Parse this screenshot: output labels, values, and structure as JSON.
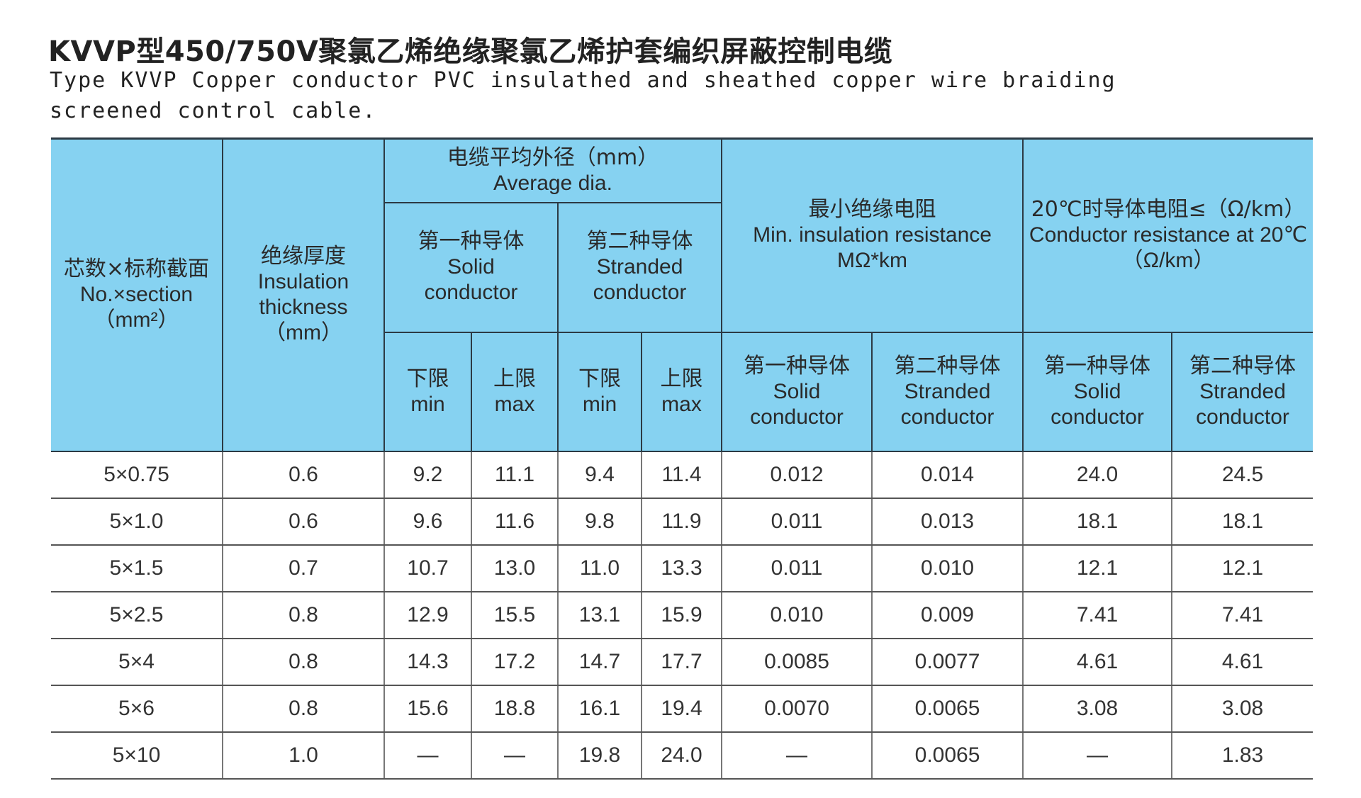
{
  "title_cn": "KVVP型450/750V聚氯乙烯绝缘聚氯乙烯护套编织屏蔽控制电缆",
  "title_en": "Type KVVP Copper conductor PVC insulathed and sheathed copper wire braiding screened control cable.",
  "header": {
    "section": {
      "cn": "芯数×标称截面",
      "en": "No.×section",
      "unit": "（mm²）"
    },
    "insulation": {
      "cn": "绝缘厚度",
      "en1": "Insulation",
      "en2": "thickness",
      "unit": "（mm）"
    },
    "avg_dia": {
      "cn": "电缆平均外径（mm）",
      "en": "Average dia."
    },
    "solid": {
      "cn": "第一种导体",
      "en1": "Solid",
      "en2": "conductor"
    },
    "stranded": {
      "cn": "第二种导体",
      "en1": "Stranded",
      "en2": "conductor"
    },
    "min_ins": {
      "cn": "最小绝缘电阻",
      "en": "Min. insulation resistance",
      "unit": "MΩ*km"
    },
    "cond_res": {
      "cn": "20℃时导体电阻≤（Ω/km）",
      "en": "Conductor resistance at 20℃",
      "unit": "（Ω/km）"
    },
    "lower": {
      "cn": "下限",
      "en": "min"
    },
    "upper": {
      "cn": "上限",
      "en": "max"
    }
  },
  "rows": [
    [
      "5×0.75",
      "0.6",
      "9.2",
      "11.1",
      "9.4",
      "11.4",
      "0.012",
      "0.014",
      "24.0",
      "24.5"
    ],
    [
      "5×1.0",
      "0.6",
      "9.6",
      "11.6",
      "9.8",
      "11.9",
      "0.011",
      "0.013",
      "18.1",
      "18.1"
    ],
    [
      "5×1.5",
      "0.7",
      "10.7",
      "13.0",
      "11.0",
      "13.3",
      "0.011",
      "0.010",
      "12.1",
      "12.1"
    ],
    [
      "5×2.5",
      "0.8",
      "12.9",
      "15.5",
      "13.1",
      "15.9",
      "0.010",
      "0.009",
      "7.41",
      "7.41"
    ],
    [
      "5×4",
      "0.8",
      "14.3",
      "17.2",
      "14.7",
      "17.7",
      "0.0085",
      "0.0077",
      "4.61",
      "4.61"
    ],
    [
      "5×6",
      "0.8",
      "15.6",
      "18.8",
      "16.1",
      "19.4",
      "0.0070",
      "0.0065",
      "3.08",
      "3.08"
    ],
    [
      "5×10",
      "1.0",
      "—",
      "—",
      "19.8",
      "24.0",
      "—",
      "0.0065",
      "—",
      "1.83"
    ]
  ]
}
